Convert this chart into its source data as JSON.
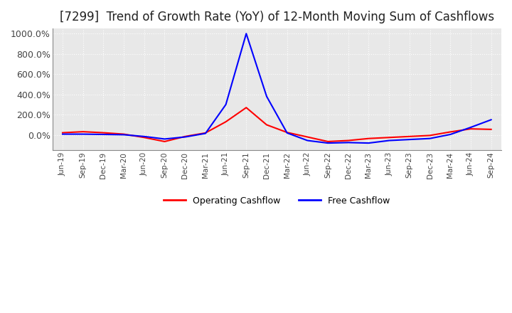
{
  "title": "[7299]  Trend of Growth Rate (YoY) of 12-Month Moving Sum of Cashflows",
  "title_fontsize": 12,
  "background_color": "#ffffff",
  "plot_bg_color": "#e8e8e8",
  "grid_color": "#ffffff",
  "grid_style": "dotted",
  "ylim": [
    -150,
    1050
  ],
  "ytick_labels": [
    "0.0%",
    "200.0%",
    "400.0%",
    "600.0%",
    "800.0%",
    "1000.0%"
  ],
  "ytick_values": [
    0,
    200,
    400,
    600,
    800,
    1000
  ],
  "legend_labels": [
    "Operating Cashflow",
    "Free Cashflow"
  ],
  "legend_colors": [
    "#ff0000",
    "#0000ff"
  ],
  "x_dates": [
    "Jun-19",
    "Sep-19",
    "Dec-19",
    "Mar-20",
    "Jun-20",
    "Sep-20",
    "Dec-20",
    "Mar-21",
    "Jun-21",
    "Sep-21",
    "Dec-21",
    "Mar-22",
    "Jun-22",
    "Sep-22",
    "Dec-22",
    "Mar-23",
    "Jun-23",
    "Sep-23",
    "Dec-23",
    "Mar-24",
    "Jun-24",
    "Sep-24"
  ],
  "operating_cashflow": [
    22,
    32,
    22,
    8,
    -25,
    -65,
    -15,
    20,
    130,
    270,
    100,
    25,
    -20,
    -65,
    -55,
    -35,
    -25,
    -15,
    -5,
    30,
    60,
    55
  ],
  "free_cashflow": [
    8,
    8,
    5,
    2,
    -15,
    -40,
    -20,
    15,
    300,
    1000,
    380,
    20,
    -55,
    -80,
    -75,
    -80,
    -55,
    -45,
    -35,
    5,
    75,
    150
  ]
}
